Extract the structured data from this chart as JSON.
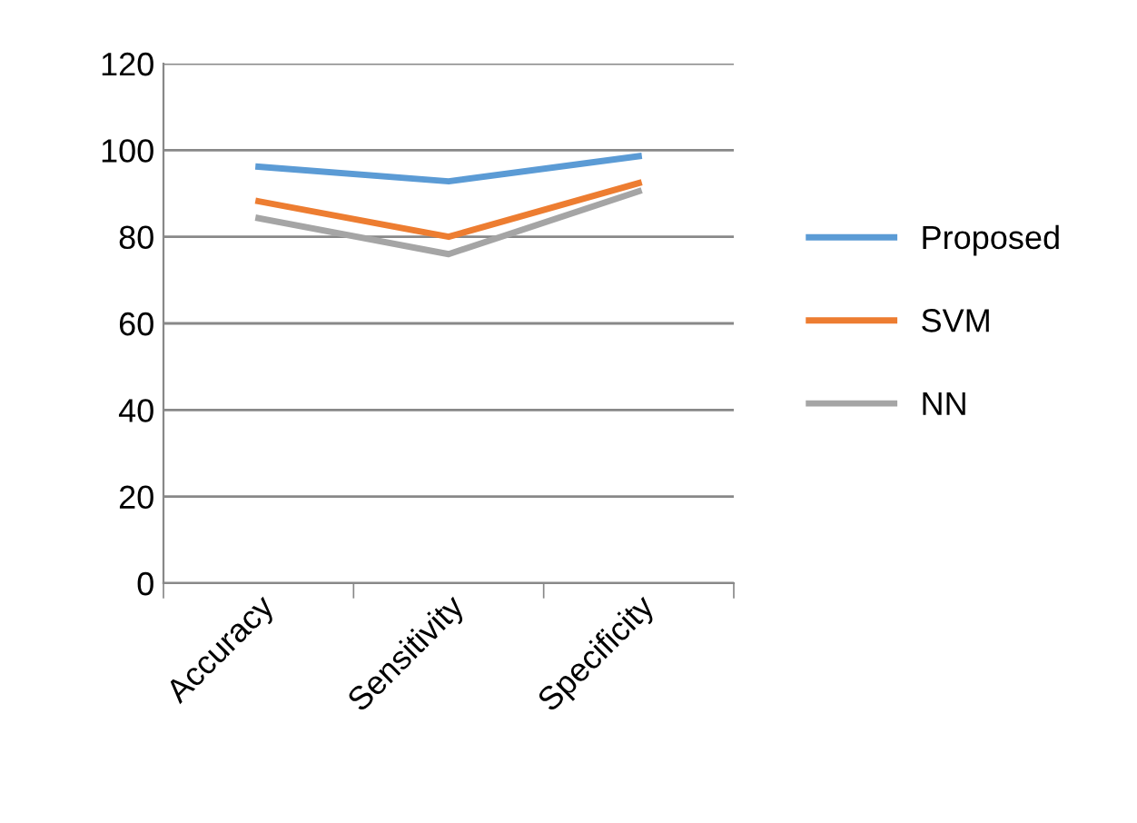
{
  "chart_data": {
    "type": "line",
    "categories": [
      "Accuracy",
      "Sensitivity",
      "Specificity"
    ],
    "series": [
      {
        "name": "Proposed",
        "color": "#5b9bd5",
        "values": [
          96.2,
          92.8,
          98.6
        ]
      },
      {
        "name": "SVM",
        "color": "#ed7d31",
        "values": [
          88.2,
          80,
          92.4
        ]
      },
      {
        "name": "NN",
        "color": "#a5a5a5",
        "values": [
          84.3,
          76,
          90.5
        ]
      }
    ],
    "ylim": [
      0,
      120
    ],
    "yticks": [
      0,
      20,
      40,
      60,
      80,
      100,
      120
    ],
    "grid": "y",
    "legend": "right",
    "marker": "none",
    "line_style": "solid"
  }
}
